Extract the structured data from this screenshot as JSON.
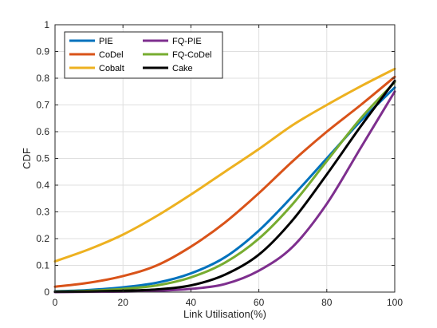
{
  "chart_data": {
    "type": "line",
    "title": "",
    "xlabel": "Link Utilisation(%)",
    "ylabel": "CDF",
    "xlim": [
      0,
      100
    ],
    "ylim": [
      0,
      1
    ],
    "xticks": [
      0,
      20,
      40,
      60,
      80,
      100
    ],
    "yticks": [
      0,
      0.1,
      0.2,
      0.3,
      0.4,
      0.5,
      0.6,
      0.7,
      0.8,
      0.9,
      1
    ],
    "xtick_labels": [
      "0",
      "20",
      "40",
      "60",
      "80",
      "100"
    ],
    "ytick_labels": [
      "0",
      "0.1",
      "0.2",
      "0.3",
      "0.4",
      "0.5",
      "0.6",
      "0.7",
      "0.8",
      "0.9",
      "1"
    ],
    "grid": true,
    "legend_position": "top-left",
    "x": [
      0,
      10,
      20,
      30,
      40,
      50,
      60,
      70,
      80,
      90,
      100
    ],
    "series": [
      {
        "name": "PIE",
        "color": "#0072BD",
        "values": [
          0.003,
          0.008,
          0.018,
          0.035,
          0.07,
          0.13,
          0.23,
          0.36,
          0.5,
          0.64,
          0.765
        ]
      },
      {
        "name": "CoDel",
        "color": "#D95319",
        "values": [
          0.02,
          0.035,
          0.06,
          0.1,
          0.17,
          0.26,
          0.37,
          0.49,
          0.6,
          0.7,
          0.805
        ]
      },
      {
        "name": "Cobalt",
        "color": "#EDB120",
        "values": [
          0.115,
          0.16,
          0.215,
          0.285,
          0.365,
          0.45,
          0.535,
          0.625,
          0.7,
          0.77,
          0.835
        ]
      },
      {
        "name": "FQ-PIE",
        "color": "#7E2F8E",
        "values": [
          0,
          0.001,
          0.002,
          0.005,
          0.012,
          0.03,
          0.08,
          0.17,
          0.33,
          0.54,
          0.75
        ]
      },
      {
        "name": "FQ-CoDel",
        "color": "#77AC30",
        "values": [
          0.002,
          0.005,
          0.012,
          0.025,
          0.055,
          0.11,
          0.2,
          0.33,
          0.49,
          0.65,
          0.785
        ]
      },
      {
        "name": "Cake",
        "color": "#000000",
        "values": [
          0.001,
          0.002,
          0.005,
          0.01,
          0.025,
          0.065,
          0.14,
          0.27,
          0.44,
          0.62,
          0.79
        ]
      }
    ]
  }
}
